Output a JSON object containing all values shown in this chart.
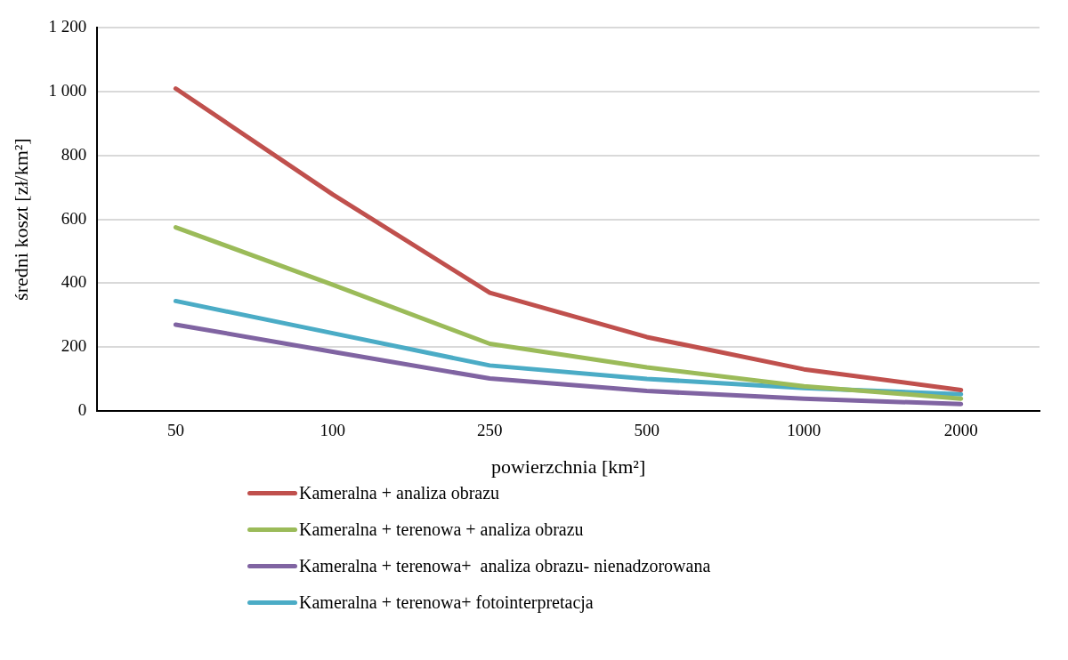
{
  "chart_data": {
    "type": "line",
    "xlabel": "powierzchnia [km²]",
    "ylabel": "średni koszt [zł/km²]",
    "categories": [
      "50",
      "100",
      "250",
      "500",
      "1000",
      "2000"
    ],
    "ylim": [
      0,
      1200
    ],
    "yticks": [
      0,
      200,
      400,
      600,
      800,
      {
        "value": 1000,
        "label": "1 000"
      },
      {
        "value": 1200,
        "label": "1 200"
      }
    ],
    "grid": "y",
    "legend": "bottom",
    "marker": "none",
    "line_style": "solid",
    "series": [
      {
        "name": "Kameralna + analiza obrazu",
        "color": "#c0504d",
        "values": [
          1010,
          678,
          370,
          231,
          130,
          65
        ]
      },
      {
        "name": "Kameralna + terenowa + analiza obrazu",
        "color": "#9bbb59",
        "values": [
          575,
          395,
          210,
          136,
          77,
          38
        ]
      },
      {
        "name": "Kameralna + terenowa+  analiza obrazu- nienadzorowana",
        "color": "#8064a2",
        "values": [
          270,
          185,
          101,
          62,
          38,
          21
        ]
      },
      {
        "name": "Kameralna + terenowa+ fotointerpretacja",
        "color": "#4bacc6",
        "values": [
          344,
          243,
          142,
          100,
          71,
          52
        ]
      }
    ]
  }
}
